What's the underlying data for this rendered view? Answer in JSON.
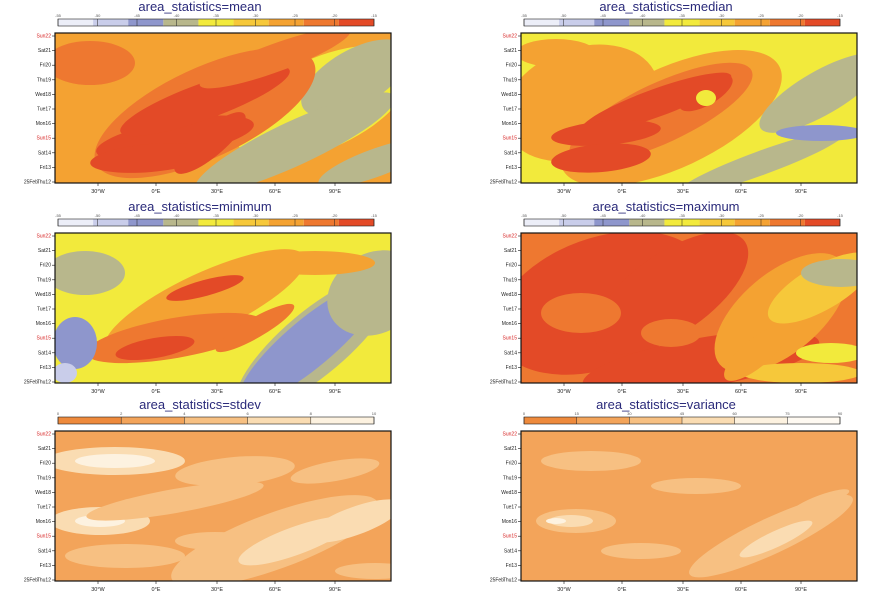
{
  "chart_data": [
    {
      "type": "heatmap",
      "title": "area_statistics=mean",
      "colorbar": {
        "ticks": [
          "-55",
          "-50",
          "-45",
          "-40",
          "-35",
          "-30",
          "-25",
          "-20",
          "-15"
        ],
        "colors": [
          "#eceef8",
          "#c9cdea",
          "#8e96cc",
          "#b8b78c",
          "#f2ea3c",
          "#f6c83a",
          "#f4a232",
          "#ee7830",
          "#e34a27"
        ]
      },
      "y_ticks": [
        "Sun22",
        "Sat21",
        "Fri20",
        "Thu19",
        "Wed18",
        "Tue17",
        "Mon16",
        "Sun15",
        "Sat14",
        "Fri13",
        "Thu12"
      ],
      "y_bottom_prefix": "25Feb",
      "y_highlight": [
        "Sun22",
        "Sun15"
      ],
      "x_ticks": [
        "30°W",
        "0°E",
        "30°E",
        "60°E",
        "90°E"
      ]
    },
    {
      "type": "heatmap",
      "title": "area_statistics=median",
      "colorbar": {
        "ticks": [
          "-55",
          "-50",
          "-45",
          "-40",
          "-35",
          "-30",
          "-25",
          "-20",
          "-15"
        ],
        "colors": [
          "#eceef8",
          "#c9cdea",
          "#8e96cc",
          "#b8b78c",
          "#f2ea3c",
          "#f6c83a",
          "#f4a232",
          "#ee7830",
          "#e34a27"
        ]
      },
      "y_ticks": [
        "Sun22",
        "Sat21",
        "Fri20",
        "Thu19",
        "Wed18",
        "Tue17",
        "Mon16",
        "Sun15",
        "Sat14",
        "Fri13",
        "Thu12"
      ],
      "y_bottom_prefix": "25Feb",
      "y_highlight": [
        "Sun22",
        "Sun15"
      ],
      "x_ticks": [
        "30°W",
        "0°E",
        "30°E",
        "60°E",
        "90°E"
      ]
    },
    {
      "type": "heatmap",
      "title": "area_statistics=minimum",
      "colorbar": {
        "ticks": [
          "-55",
          "-50",
          "-45",
          "-40",
          "-35",
          "-30",
          "-25",
          "-20",
          "-15"
        ],
        "colors": [
          "#eceef8",
          "#c9cdea",
          "#8e96cc",
          "#b8b78c",
          "#f2ea3c",
          "#f6c83a",
          "#f4a232",
          "#ee7830",
          "#e34a27"
        ]
      },
      "y_ticks": [
        "Sun22",
        "Sat21",
        "Fri20",
        "Thu19",
        "Wed18",
        "Tue17",
        "Mon16",
        "Sun15",
        "Sat14",
        "Fri13",
        "Thu12"
      ],
      "y_bottom_prefix": "25Feb",
      "y_highlight": [
        "Sun22",
        "Sun15"
      ],
      "x_ticks": [
        "30°W",
        "0°E",
        "30°E",
        "60°E",
        "90°E"
      ]
    },
    {
      "type": "heatmap",
      "title": "area_statistics=maximum",
      "colorbar": {
        "ticks": [
          "-55",
          "-50",
          "-45",
          "-40",
          "-35",
          "-30",
          "-25",
          "-20",
          "-15"
        ],
        "colors": [
          "#eceef8",
          "#c9cdea",
          "#8e96cc",
          "#b8b78c",
          "#f2ea3c",
          "#f6c83a",
          "#f4a232",
          "#ee7830",
          "#e34a27"
        ]
      },
      "y_ticks": [
        "Sun22",
        "Sat21",
        "Fri20",
        "Thu19",
        "Wed18",
        "Tue17",
        "Mon16",
        "Sun15",
        "Sat14",
        "Fri13",
        "Thu12"
      ],
      "y_bottom_prefix": "25Feb",
      "y_highlight": [
        "Sun22",
        "Sun15"
      ],
      "x_ticks": [
        "30°W",
        "0°E",
        "30°E",
        "60°E",
        "90°E"
      ]
    },
    {
      "type": "heatmap",
      "title": "area_statistics=stdev",
      "colorbar": {
        "ticks": [
          "0",
          "2",
          "4",
          "6",
          "8",
          "10"
        ],
        "colors": [
          "#ee8a3c",
          "#f3a45a",
          "#f7c082",
          "#fadcb2",
          "#fdf2e0"
        ]
      },
      "y_ticks": [
        "Sun22",
        "Sat21",
        "Fri20",
        "Thu19",
        "Wed18",
        "Tue17",
        "Mon16",
        "Sun15",
        "Sat14",
        "Fri13",
        "Thu12"
      ],
      "y_bottom_prefix": "25Feb",
      "y_highlight": [
        "Sun22",
        "Sun15"
      ],
      "x_ticks": [
        "30°W",
        "0°E",
        "30°E",
        "60°E",
        "90°E"
      ]
    },
    {
      "type": "heatmap",
      "title": "area_statistics=variance",
      "colorbar": {
        "ticks": [
          "0",
          "15",
          "30",
          "45",
          "60",
          "75",
          "90"
        ],
        "colors": [
          "#ee8a3c",
          "#f3a45a",
          "#f7c082",
          "#fadcb2",
          "#fdf2e0",
          "#fffaf2"
        ]
      },
      "y_ticks": [
        "Sun22",
        "Sat21",
        "Fri20",
        "Thu19",
        "Wed18",
        "Tue17",
        "Mon16",
        "Sun15",
        "Sat14",
        "Fri13",
        "Thu12"
      ],
      "y_bottom_prefix": "25Feb",
      "y_highlight": [
        "Sun22",
        "Sun15"
      ],
      "x_ticks": [
        "30°W",
        "0°E",
        "30°E",
        "60°E",
        "90°E"
      ]
    }
  ]
}
